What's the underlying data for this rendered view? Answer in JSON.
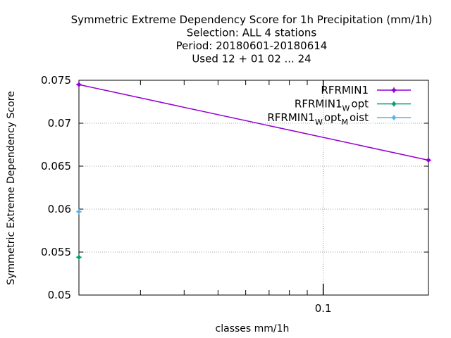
{
  "chart_data": {
    "type": "line",
    "title_lines": [
      "Symmetric Extreme Dependency Score  for 1h Precipitation (mm/1h)",
      "Selection: ALL      4 stations",
      "Period: 20180601-20180614",
      "Used  12 + 01 02 ... 24"
    ],
    "xlabel": "classes mm/1h",
    "ylabel": "Symmetric Extreme Dependency Score",
    "x_scale": "log",
    "xlim": [
      0.02,
      0.2
    ],
    "ylim": [
      0.05,
      0.075
    ],
    "y_ticks": [
      "0.05",
      "0.055",
      "0.06",
      "0.065",
      "0.07",
      "0.075"
    ],
    "x_ticks": [
      "0.1"
    ],
    "grid": true,
    "legend_position": "top-right",
    "series": [
      {
        "name": "RFRMIN1",
        "legend": {
          "base": "RFRMIN1",
          "parts": []
        },
        "color": "#9400d3",
        "x": [
          0.02,
          0.2
        ],
        "y": [
          0.0745,
          0.0657
        ]
      },
      {
        "name": "RFRMIN1_W opt",
        "legend": {
          "base": "RFRMIN1",
          "parts": [
            {
              "sub": "W",
              "text": "opt"
            }
          ]
        },
        "color": "#009e73",
        "x": [
          0.02
        ],
        "y": [
          0.0544
        ]
      },
      {
        "name": "RFRMIN1_W opt_M oist",
        "legend": {
          "base": "RFRMIN1",
          "parts": [
            {
              "sub": "W",
              "text": "opt"
            },
            {
              "sub": "M",
              "text": "oist"
            }
          ]
        },
        "color": "#56b4e9",
        "x": [
          0.02
        ],
        "y": [
          0.0597
        ]
      }
    ]
  }
}
